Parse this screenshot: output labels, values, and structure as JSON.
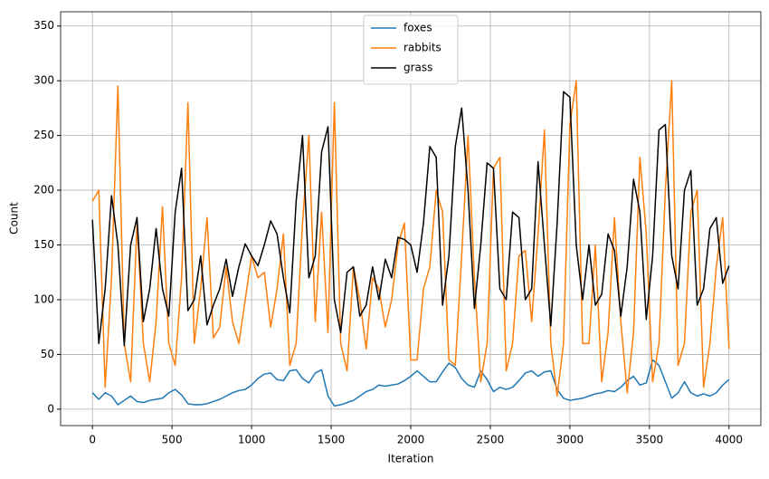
{
  "chart_data": {
    "type": "line",
    "xlabel": "Iteration",
    "ylabel": "Count",
    "x": [
      0,
      40,
      80,
      120,
      160,
      200,
      240,
      280,
      320,
      360,
      400,
      440,
      480,
      520,
      560,
      600,
      640,
      680,
      720,
      760,
      800,
      840,
      880,
      920,
      960,
      1000,
      1040,
      1080,
      1120,
      1160,
      1200,
      1240,
      1280,
      1320,
      1360,
      1400,
      1440,
      1480,
      1520,
      1560,
      1600,
      1640,
      1680,
      1720,
      1760,
      1800,
      1840,
      1880,
      1920,
      1960,
      2000,
      2040,
      2080,
      2120,
      2160,
      2200,
      2240,
      2280,
      2320,
      2360,
      2400,
      2440,
      2480,
      2520,
      2560,
      2600,
      2640,
      2680,
      2720,
      2760,
      2800,
      2840,
      2880,
      2920,
      2960,
      3000,
      3040,
      3080,
      3120,
      3160,
      3200,
      3240,
      3280,
      3320,
      3360,
      3400,
      3440,
      3480,
      3520,
      3560,
      3600,
      3640,
      3680,
      3720,
      3760,
      3800,
      3840,
      3880,
      3920,
      3960,
      4000
    ],
    "series": [
      {
        "name": "foxes",
        "color": "#1f77b4",
        "values": [
          15,
          9,
          15,
          12,
          4,
          8,
          12,
          7,
          6,
          8,
          9,
          10,
          15,
          18,
          13,
          5,
          4,
          4,
          5,
          7,
          9,
          12,
          15,
          17,
          18,
          22,
          28,
          32,
          33,
          27,
          26,
          35,
          36,
          28,
          24,
          33,
          36,
          12,
          3,
          4,
          6,
          8,
          12,
          16,
          18,
          22,
          21,
          22,
          23,
          26,
          30,
          35,
          30,
          25,
          25,
          34,
          42,
          38,
          28,
          22,
          20,
          35,
          27,
          16,
          20,
          18,
          20,
          26,
          33,
          35,
          30,
          34,
          35,
          18,
          10,
          8,
          9,
          10,
          12,
          14,
          15,
          17,
          16,
          20,
          26,
          30,
          22,
          24,
          45,
          40,
          25,
          10,
          15,
          25,
          15,
          12,
          14,
          12,
          15,
          22,
          27
        ]
      },
      {
        "name": "rabbits",
        "color": "#ff7f0e",
        "values": [
          190,
          200,
          20,
          120,
          295,
          60,
          25,
          170,
          60,
          25,
          80,
          185,
          60,
          40,
          120,
          280,
          60,
          110,
          175,
          65,
          75,
          130,
          80,
          60,
          100,
          140,
          120,
          125,
          75,
          110,
          160,
          40,
          60,
          170,
          250,
          80,
          180,
          70,
          280,
          60,
          35,
          130,
          100,
          55,
          120,
          110,
          75,
          100,
          150,
          170,
          45,
          45,
          110,
          130,
          200,
          180,
          45,
          40,
          140,
          250,
          120,
          25,
          60,
          220,
          230,
          35,
          60,
          140,
          145,
          80,
          160,
          255,
          60,
          12,
          60,
          260,
          300,
          60,
          60,
          150,
          25,
          70,
          175,
          80,
          15,
          70,
          230,
          160,
          25,
          60,
          200,
          300,
          40,
          60,
          180,
          200,
          20,
          60,
          130,
          175,
          55
        ]
      },
      {
        "name": "grass",
        "color": "#000000",
        "values": [
          173,
          60,
          110,
          195,
          150,
          58,
          150,
          175,
          80,
          110,
          165,
          110,
          85,
          180,
          220,
          90,
          100,
          140,
          77,
          95,
          110,
          137,
          103,
          130,
          151,
          140,
          131,
          150,
          172,
          160,
          120,
          88,
          190,
          250,
          120,
          140,
          235,
          258,
          100,
          70,
          125,
          130,
          85,
          95,
          130,
          100,
          137,
          120,
          157,
          155,
          150,
          125,
          170,
          240,
          230,
          95,
          140,
          240,
          275,
          200,
          92,
          150,
          225,
          220,
          110,
          100,
          180,
          175,
          100,
          110,
          226,
          150,
          76,
          170,
          290,
          285,
          150,
          100,
          150,
          95,
          105,
          160,
          145,
          85,
          130,
          210,
          180,
          82,
          140,
          255,
          260,
          140,
          110,
          200,
          218,
          95,
          110,
          165,
          175,
          115,
          131
        ]
      }
    ],
    "xlim": [
      -200,
      4200
    ],
    "ylim": [
      -15,
      363
    ],
    "xticks": [
      0,
      500,
      1000,
      1500,
      2000,
      2500,
      3000,
      3500,
      4000
    ],
    "yticks": [
      0,
      50,
      100,
      150,
      200,
      250,
      300,
      350
    ],
    "grid": true,
    "legend": "upper center"
  }
}
